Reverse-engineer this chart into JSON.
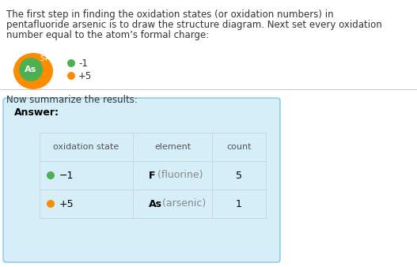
{
  "bg_color": "#ffffff",
  "text_color": "#333333",
  "paragraph_text_lines": [
    "The first step in finding the oxidation states (or oxidation numbers) in",
    "pentafluoride arsenic is to draw the structure diagram. Next set every oxidation",
    "number equal to the atom’s formal charge:"
  ],
  "paragraph_fontsize": 8.5,
  "legend_items": [
    {
      "color": "#4caf50",
      "label": "-1"
    },
    {
      "color": "#ff8c00",
      "label": "+5"
    }
  ],
  "molecule_outer_color": "#ff8c00",
  "molecule_inner_color": "#4caf50",
  "molecule_text": "As",
  "molecule_superscript": "5+",
  "summarize_text": "Now summarize the results:",
  "answer_box_color": "#d6eef8",
  "answer_box_edge_color": "#7ec8e3",
  "answer_label": "Answer:",
  "table_headers": [
    "oxidation state",
    "element",
    "count"
  ],
  "table_rows": [
    {
      "dot_color": "#4caf50",
      "state": "−1",
      "element_bold": "F",
      "element_light": " (fluorine)",
      "count": "5"
    },
    {
      "dot_color": "#ff8c00",
      "state": "+5",
      "element_bold": "As",
      "element_light": " (arsenic)",
      "count": "1"
    }
  ],
  "table_header_color": "#555555",
  "table_text_color": "#000000",
  "table_light_color": "#888888",
  "divider_color": "#cccccc"
}
